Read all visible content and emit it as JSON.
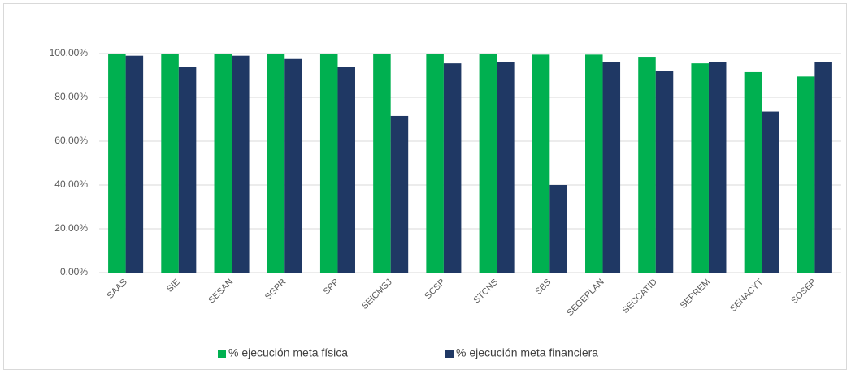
{
  "chart_data": {
    "type": "bar",
    "categories": [
      "SAAS",
      "SIE",
      "SESAN",
      "SGPR",
      "SPP",
      "SEICMSJ",
      "SCSP",
      "STCNS",
      "SBS",
      "SEGEPLAN",
      "SECCATID",
      "SEPREM",
      "SENACYT",
      "SOSEP"
    ],
    "series": [
      {
        "name": "% ejecución meta física",
        "color": "#00b050",
        "values": [
          100,
          100,
          100,
          100,
          100,
          100,
          100,
          100,
          99.5,
          99.5,
          98.5,
          95.5,
          91.5,
          89.5
        ]
      },
      {
        "name": "% ejecución meta financiera",
        "color": "#1f3864",
        "values": [
          99,
          94,
          99,
          97.5,
          94,
          71.5,
          95.5,
          96,
          40,
          96,
          92,
          96,
          73.5,
          96
        ]
      }
    ],
    "ylim": [
      0,
      100
    ],
    "yticks": [
      {
        "value": 0,
        "label": "0.00%"
      },
      {
        "value": 20,
        "label": "20.00%"
      },
      {
        "value": 40,
        "label": "40.00%"
      },
      {
        "value": 60,
        "label": "60.00%"
      },
      {
        "value": 80,
        "label": "80.00%"
      },
      {
        "value": 100,
        "label": "100.00%"
      }
    ],
    "grid": true,
    "legend": "bottom"
  }
}
